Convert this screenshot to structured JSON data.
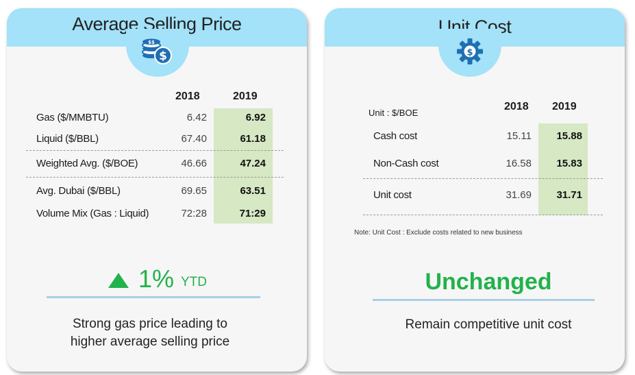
{
  "colors": {
    "header": "#a3e2f8",
    "highlight": "#d6e8c4",
    "accent_green": "#22b24c",
    "underline": "#a9cfe3",
    "badge_icon": "#1f6fb2"
  },
  "left_card": {
    "title": "Average Selling Price",
    "icon": "money-coins-icon",
    "col_2018": "2018",
    "col_2019": "2019",
    "rows": [
      {
        "label": "Gas ($/MMBTU)",
        "v2018": "6.42",
        "v2019": "6.92"
      },
      {
        "label": "Liquid ($/BBL)",
        "v2018": "67.40",
        "v2019": "61.18"
      },
      {
        "label": "Weighted Avg. ($/BOE)",
        "v2018": "46.66",
        "v2019": "47.24"
      },
      {
        "label": "Avg. Dubai ($/BBL)",
        "v2018": "69.65",
        "v2019": "63.51"
      },
      {
        "label": "Volume Mix (Gas : Liquid)",
        "v2018": "72:28",
        "v2019": "71:29"
      }
    ],
    "change_value": "1%",
    "change_suffix": "YTD",
    "change_icon": "triangle-up-icon",
    "caption_line1": "Strong gas price leading to",
    "caption_line2": "higher average selling price"
  },
  "right_card": {
    "title": "Unit Cost",
    "icon": "gear-dollar-icon",
    "unit_label": "Unit : $/BOE",
    "col_2018": "2018",
    "col_2019": "2019",
    "rows": [
      {
        "label": "Cash cost",
        "v2018": "15.11",
        "v2019": "15.88"
      },
      {
        "label": "Non-Cash cost",
        "v2018": "16.58",
        "v2019": "15.83"
      },
      {
        "label": "Unit cost",
        "v2018": "31.69",
        "v2019": "31.71"
      }
    ],
    "note": "Note:   Unit Cost :  Exclude costs related to new business",
    "status": "Unchanged",
    "caption": "Remain competitive unit cost"
  }
}
